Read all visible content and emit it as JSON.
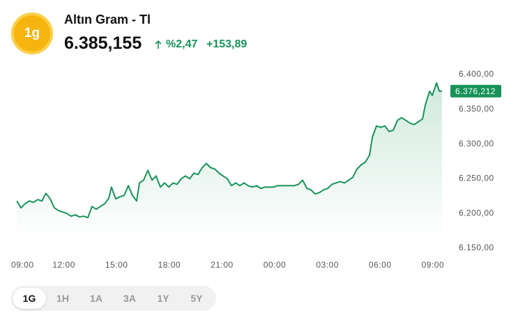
{
  "header": {
    "logo": "1g",
    "title": "Altın Gram - Tl",
    "price": "6.385,155",
    "change_percent": "%2,47",
    "change_value": "+153,89"
  },
  "chart_data": {
    "type": "line",
    "color": "#17935a",
    "x": [
      0.32,
      0.56,
      0.79,
      1.03,
      1.27,
      1.51,
      1.75,
      1.98,
      2.22,
      2.46,
      2.7,
      2.94,
      3.17,
      3.41,
      3.65,
      3.89,
      4.13,
      4.37,
      4.6,
      4.84,
      5.08,
      5.32,
      5.56,
      5.71,
      5.95,
      6.19,
      6.43,
      6.67,
      6.9,
      7.14,
      7.3,
      7.54,
      7.78,
      8.02,
      8.25,
      8.49,
      8.73,
      8.97,
      9.21,
      9.44,
      9.68,
      9.92,
      10.16,
      10.4,
      10.63,
      10.87,
      11.11,
      11.35,
      11.59,
      11.83,
      12.06,
      12.3,
      12.54,
      12.78,
      13.02,
      13.25,
      13.49,
      13.73,
      13.97,
      14.21,
      14.44,
      14.68,
      14.92,
      15.16,
      15.4,
      15.63,
      15.87,
      16.11,
      16.35,
      16.59,
      16.83,
      17.06,
      17.3,
      17.54,
      17.78,
      18.02,
      18.25,
      18.49,
      18.73,
      18.97,
      19.21,
      19.44,
      19.68,
      19.92,
      20.16,
      20.4,
      20.56,
      20.79,
      21.03,
      21.27,
      21.51,
      21.75,
      21.98,
      22.22,
      22.46,
      22.7,
      22.94,
      23.17,
      23.41,
      23.57,
      23.81,
      23.97,
      24.21,
      24.37,
      24.52
    ],
    "values": [
      6218,
      6208,
      6214,
      6218,
      6216,
      6220,
      6218,
      6229,
      6221,
      6208,
      6204,
      6202,
      6200,
      6196,
      6198,
      6195,
      6196,
      6194,
      6210,
      6206,
      6210,
      6214,
      6222,
      6238,
      6221,
      6224,
      6226,
      6240,
      6226,
      6218,
      6244,
      6248,
      6262,
      6248,
      6254,
      6238,
      6244,
      6238,
      6244,
      6242,
      6250,
      6254,
      6250,
      6258,
      6256,
      6266,
      6272,
      6266,
      6264,
      6258,
      6254,
      6250,
      6240,
      6244,
      6240,
      6244,
      6240,
      6238,
      6240,
      6236,
      6238,
      6238,
      6238,
      6240,
      6240,
      6240,
      6240,
      6240,
      6242,
      6248,
      6236,
      6234,
      6228,
      6230,
      6234,
      6236,
      6242,
      6244,
      6246,
      6244,
      6248,
      6252,
      6264,
      6270,
      6274,
      6284,
      6310,
      6326,
      6324,
      6326,
      6318,
      6320,
      6334,
      6338,
      6334,
      6330,
      6328,
      6332,
      6336,
      6356,
      6376,
      6370,
      6388,
      6376,
      6376.212
    ],
    "current": {
      "value": 6376.212,
      "label": "6.376,212"
    },
    "xlim": [
      0,
      24.6
    ],
    "xticks": [
      {
        "value": 0,
        "label": "09:00"
      },
      {
        "value": 3,
        "label": "12:00"
      },
      {
        "value": 6,
        "label": "15:00"
      },
      {
        "value": 9,
        "label": "18:00"
      },
      {
        "value": 12,
        "label": "21:00"
      },
      {
        "value": 15,
        "label": "00:00"
      },
      {
        "value": 18,
        "label": "03:00"
      },
      {
        "value": 21,
        "label": "06:00"
      },
      {
        "value": 24,
        "label": "09:00"
      }
    ],
    "ylim": [
      6150,
      6400
    ],
    "yticks": [
      {
        "value": 6150,
        "label": "6.150,00"
      },
      {
        "value": 6200,
        "label": "6.200,00"
      },
      {
        "value": 6250,
        "label": "6.250,00"
      },
      {
        "value": 6300,
        "label": "6.300,00"
      },
      {
        "value": 6350,
        "label": "6.350,00"
      },
      {
        "value": 6400,
        "label": "6.400,00"
      }
    ]
  },
  "range_buttons": [
    "1G",
    "1H",
    "1A",
    "3A",
    "1Y",
    "5Y"
  ]
}
